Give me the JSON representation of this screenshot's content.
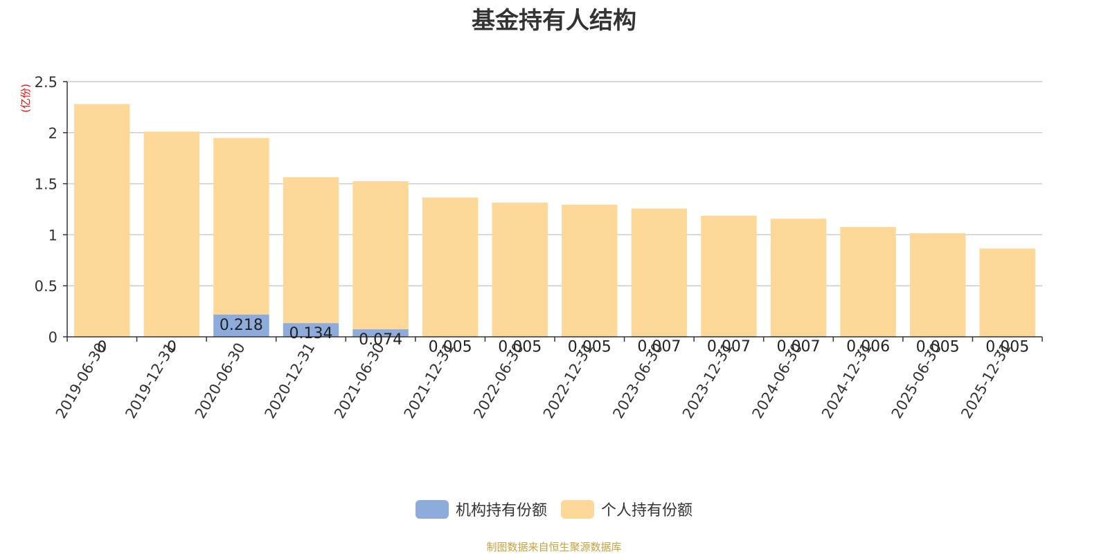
{
  "title": "基金持有人结构",
  "source_note": "制图数据来自恒生聚源数据库",
  "colors": {
    "institutional": "#8eacdb",
    "individual": "#fdd899",
    "axis": "#333333",
    "grid": "#cccccc",
    "unit": "#ff0000"
  },
  "chart_data": {
    "type": "bar",
    "stacked": true,
    "title": "基金持有人结构",
    "ylabel": "(亿份)",
    "ylim": [
      0,
      2.5
    ],
    "yticks": [
      "0",
      "0.5",
      "1",
      "1.5",
      "2",
      "2.5"
    ],
    "ytick_values": [
      0,
      0.5,
      1,
      1.5,
      2,
      2.5
    ],
    "categories": [
      "2019-06-30",
      "2019-12-31",
      "2020-06-30",
      "2020-12-31",
      "2021-06-30",
      "2021-12-31",
      "2022-06-30",
      "2022-12-31",
      "2023-06-30",
      "2023-12-31",
      "2024-06-30",
      "2024-12-31",
      "2025-06-30",
      "2025-12-31"
    ],
    "series": [
      {
        "name": "机构持有份额",
        "values": [
          0,
          0,
          0.218,
          0.134,
          0.074,
          0.005,
          0.005,
          0.005,
          0.007,
          0.007,
          0.007,
          0.006,
          0.005,
          0.005
        ],
        "labels": [
          "0",
          "0",
          "0.218",
          "0.134",
          "0.074",
          "0.005",
          "0.005",
          "0.005",
          "0.007",
          "0.007",
          "0.007",
          "0.006",
          "0.005",
          "0.005"
        ]
      },
      {
        "name": "个人持有份额",
        "values": [
          2.28,
          2.01,
          1.73,
          1.43,
          1.45,
          1.36,
          1.31,
          1.29,
          1.25,
          1.18,
          1.15,
          1.07,
          1.01,
          0.86
        ]
      }
    ],
    "legend_position": "bottom",
    "grid": true
  }
}
